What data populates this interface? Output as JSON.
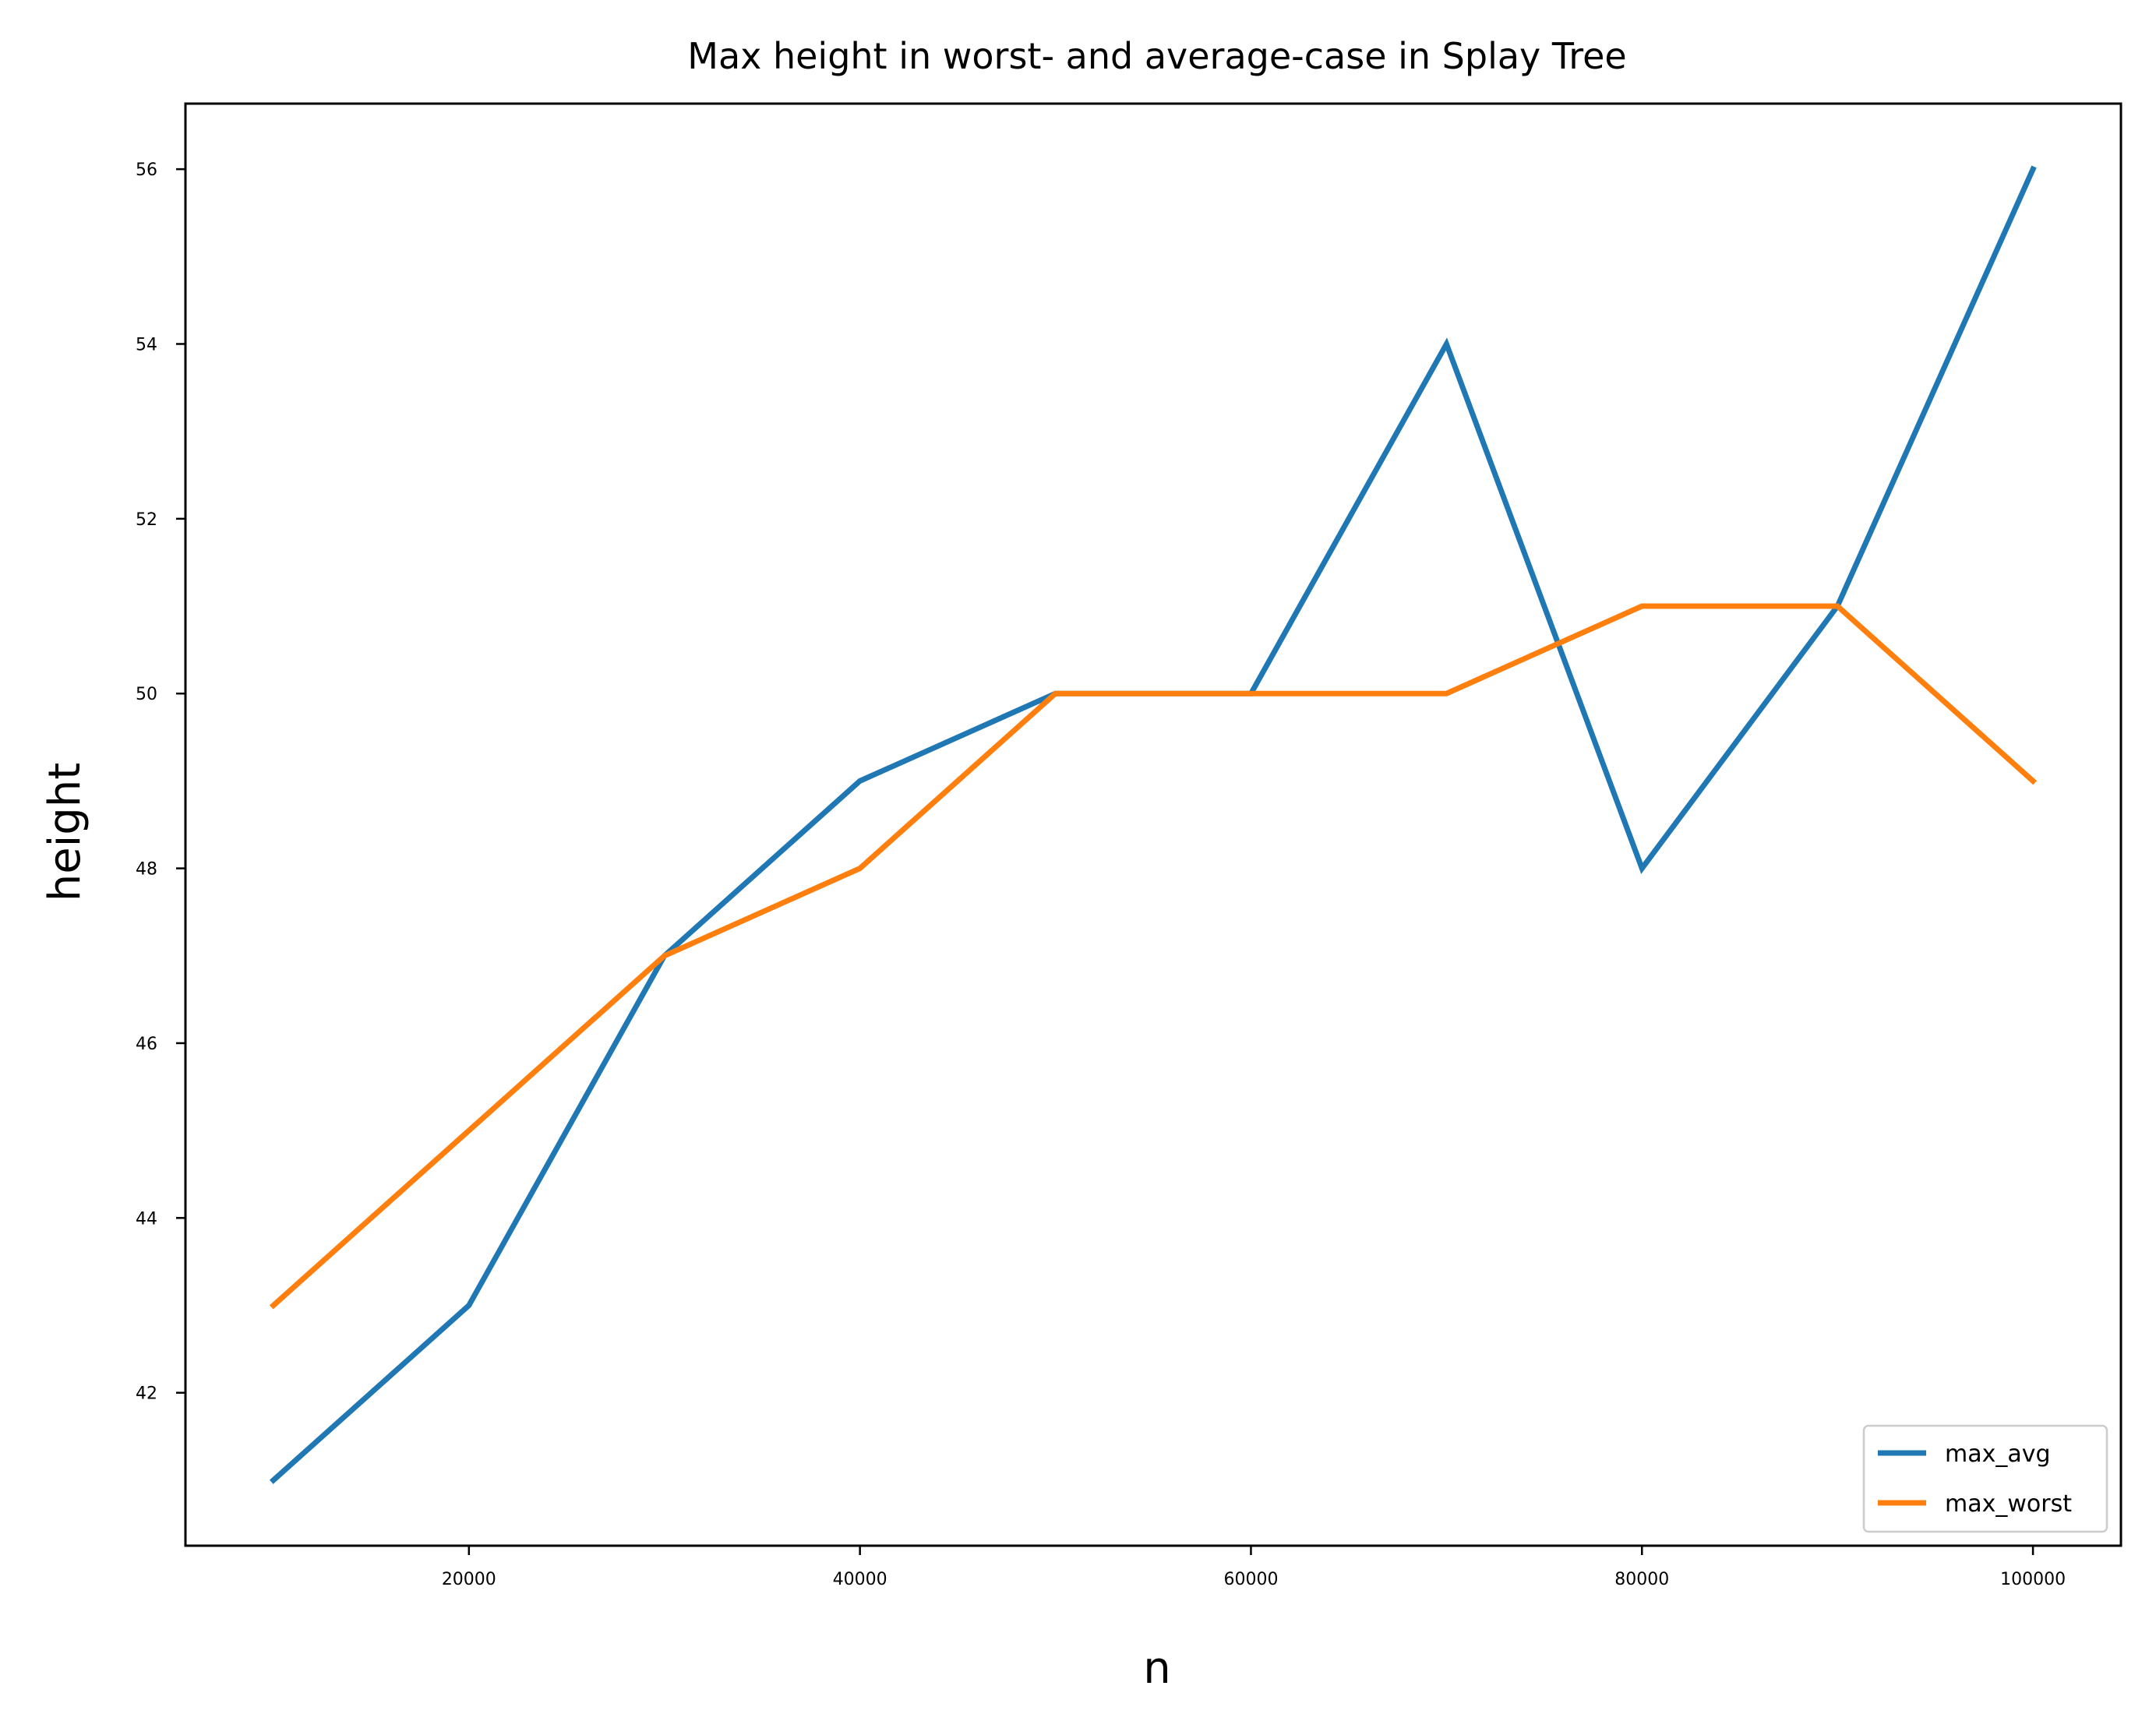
{
  "chart_data": {
    "type": "line",
    "title": "Max height in worst- and average-case in Splay Tree",
    "xlabel": "n",
    "ylabel": "height",
    "x": [
      10000,
      20000,
      30000,
      40000,
      50000,
      60000,
      70000,
      80000,
      90000,
      100000
    ],
    "series": [
      {
        "name": "max_avg",
        "color": "#1f77b4",
        "values": [
          41,
          43,
          47,
          49,
          50,
          50,
          54,
          48,
          51,
          56
        ]
      },
      {
        "name": "max_worst",
        "color": "#ff7f0e",
        "values": [
          43,
          45,
          47,
          48,
          50,
          50,
          50,
          51,
          51,
          49
        ]
      }
    ],
    "xlim": [
      5500,
      104500
    ],
    "ylim": [
      40.25,
      56.75
    ],
    "xticks": [
      20000,
      40000,
      60000,
      80000,
      100000
    ],
    "xtick_labels": [
      "20000",
      "40000",
      "60000",
      "80000",
      "100000"
    ],
    "yticks": [
      42,
      44,
      46,
      48,
      50,
      52,
      54,
      56
    ],
    "ytick_labels": [
      "42",
      "44",
      "46",
      "48",
      "50",
      "52",
      "54",
      "56"
    ],
    "grid": false,
    "legend_position": "lower right"
  }
}
